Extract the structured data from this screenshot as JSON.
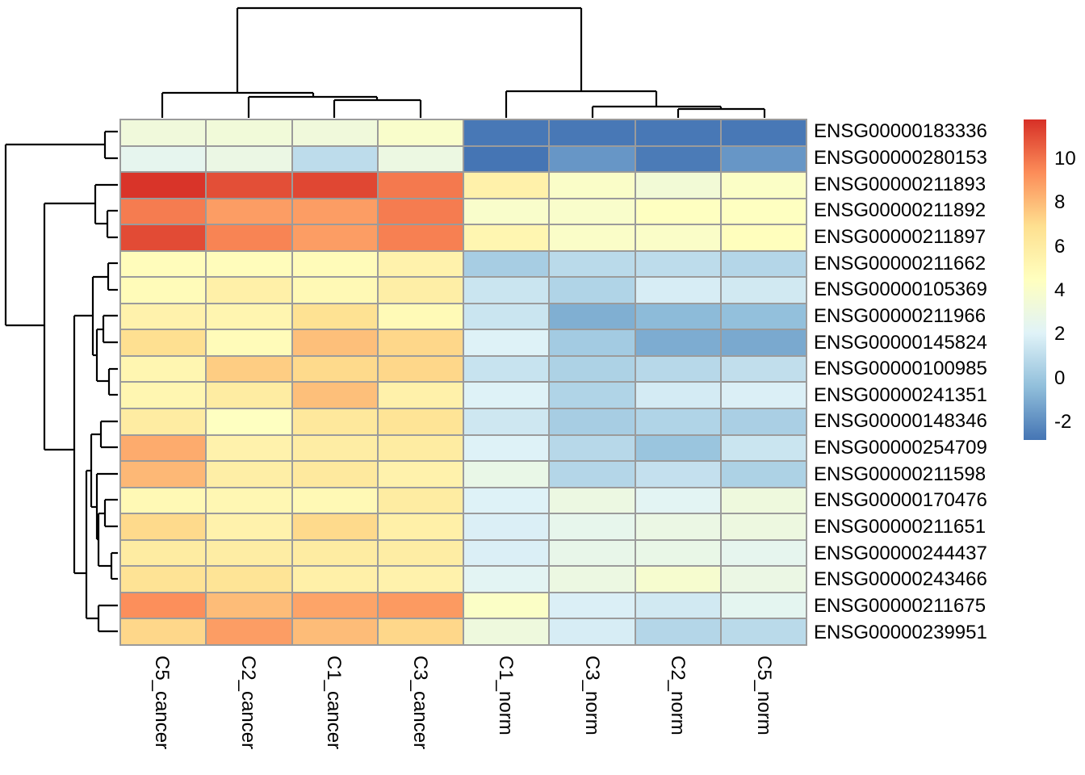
{
  "chart_data": {
    "type": "heatmap",
    "title": "",
    "rows": [
      "ENSG00000183336",
      "ENSG00000280153",
      "ENSG00000211893",
      "ENSG00000211892",
      "ENSG00000211897",
      "ENSG00000211662",
      "ENSG00000105369",
      "ENSG00000211966",
      "ENSG00000145824",
      "ENSG00000100985",
      "ENSG00000241351",
      "ENSG00000148346",
      "ENSG00000254709",
      "ENSG00000211598",
      "ENSG00000170476",
      "ENSG00000211651",
      "ENSG00000244437",
      "ENSG00000243466",
      "ENSG00000211675",
      "ENSG00000239951"
    ],
    "columns": [
      "C5_cancer",
      "C2_cancer",
      "C1_cancer",
      "C3_cancer",
      "C1_norm",
      "C3_norm",
      "C2_norm",
      "C5_norm"
    ],
    "values": [
      [
        3.3,
        3.4,
        3.3,
        4.0,
        -2.7,
        -2.7,
        -2.7,
        -2.7
      ],
      [
        2.5,
        2.9,
        1.0,
        3.0,
        -2.8,
        -1.7,
        -2.6,
        -1.7
      ],
      [
        11.7,
        11.0,
        11.2,
        9.9,
        5.6,
        4.1,
        3.5,
        4.2
      ],
      [
        9.8,
        8.9,
        8.9,
        9.8,
        4.0,
        4.0,
        4.4,
        4.4
      ],
      [
        11.1,
        9.6,
        8.9,
        9.7,
        5.2,
        4.1,
        4.1,
        4.6
      ],
      [
        4.7,
        4.7,
        4.8,
        5.5,
        0.3,
        0.9,
        1.0,
        0.7
      ],
      [
        4.8,
        5.7,
        5.0,
        5.8,
        1.4,
        0.6,
        1.8,
        1.6
      ],
      [
        5.5,
        5.3,
        6.8,
        4.9,
        1.4,
        -0.9,
        -0.5,
        -0.3
      ],
      [
        6.9,
        4.8,
        7.9,
        7.2,
        2.0,
        0.2,
        -1.0,
        -1.1
      ],
      [
        5.2,
        7.5,
        7.1,
        7.2,
        1.3,
        0.5,
        0.8,
        1.1
      ],
      [
        5.2,
        6.0,
        7.9,
        5.6,
        2.0,
        0.6,
        1.7,
        1.9
      ],
      [
        6.0,
        4.4,
        6.3,
        6.6,
        1.5,
        0.3,
        0.6,
        0.4
      ],
      [
        8.5,
        5.5,
        5.9,
        6.0,
        2.0,
        0.8,
        -0.1,
        1.4
      ],
      [
        8.1,
        5.8,
        6.2,
        5.5,
        2.8,
        0.7,
        1.2,
        0.5
      ],
      [
        5.0,
        5.1,
        5.0,
        6.0,
        2.0,
        3.0,
        2.3,
        3.2
      ],
      [
        7.1,
        5.5,
        7.1,
        5.7,
        1.9,
        2.6,
        2.9,
        3.1
      ],
      [
        6.0,
        5.9,
        6.0,
        5.9,
        1.9,
        2.7,
        2.8,
        2.5
      ],
      [
        6.7,
        6.6,
        5.7,
        5.5,
        2.3,
        3.0,
        3.8,
        2.9
      ],
      [
        9.3,
        8.0,
        8.7,
        9.0,
        4.2,
        1.9,
        1.6,
        2.4
      ],
      [
        7.2,
        8.9,
        8.0,
        7.2,
        3.2,
        1.8,
        0.7,
        0.9
      ]
    ],
    "colormap": [
      "#4575b4",
      "#91bfdb",
      "#e0f3f8",
      "#ffffbf",
      "#fee090",
      "#fc8d59",
      "#d73027"
    ],
    "scale": {
      "min": -2.8,
      "max": 11.8
    },
    "legend_ticks": [
      10,
      8,
      6,
      4,
      2,
      0,
      -2
    ],
    "grid_color": "#9b9b9b",
    "line_color": "#000000",
    "col_dendrogram_segments": [
      [
        294,
        10,
        720,
        10
      ],
      [
        294,
        10,
        294,
        115
      ],
      [
        720,
        10,
        720,
        113
      ],
      [
        201,
        115,
        388,
        115
      ],
      [
        201,
        115,
        201,
        146
      ],
      [
        388,
        115,
        388,
        120
      ],
      [
        308,
        120,
        467,
        120
      ],
      [
        308,
        120,
        308,
        146
      ],
      [
        467,
        120,
        467,
        124
      ],
      [
        414,
        124,
        521,
        124
      ],
      [
        414,
        124,
        414,
        146
      ],
      [
        521,
        124,
        521,
        146
      ],
      [
        627,
        113,
        813,
        113
      ],
      [
        627,
        113,
        627,
        146
      ],
      [
        813,
        113,
        813,
        132
      ],
      [
        734,
        132,
        893,
        132
      ],
      [
        734,
        132,
        734,
        146
      ],
      [
        893,
        132,
        893,
        135
      ],
      [
        840,
        135,
        947,
        135
      ],
      [
        840,
        135,
        840,
        146
      ],
      [
        947,
        135,
        947,
        146
      ]
    ],
    "row_dendrogram_segments": [
      [
        7,
        179,
        130,
        179
      ],
      [
        130,
        163,
        130,
        196
      ],
      [
        130,
        163,
        146,
        163
      ],
      [
        130,
        196,
        146,
        196
      ],
      [
        7,
        179,
        7,
        403
      ],
      [
        7,
        403,
        55,
        403
      ],
      [
        55,
        252,
        55,
        557
      ],
      [
        55,
        252,
        118,
        252
      ],
      [
        118,
        229,
        118,
        277
      ],
      [
        118,
        229,
        146,
        229
      ],
      [
        118,
        277,
        133,
        277
      ],
      [
        133,
        261,
        133,
        294
      ],
      [
        133,
        261,
        146,
        261
      ],
      [
        133,
        294,
        146,
        294
      ],
      [
        55,
        557,
        92,
        557
      ],
      [
        92,
        391,
        92,
        710
      ],
      [
        92,
        391,
        115,
        391
      ],
      [
        115,
        343,
        115,
        440
      ],
      [
        115,
        343,
        134,
        343
      ],
      [
        134,
        326,
        134,
        359
      ],
      [
        134,
        326,
        146,
        326
      ],
      [
        134,
        359,
        146,
        359
      ],
      [
        115,
        440,
        120,
        440
      ],
      [
        120,
        408,
        120,
        472
      ],
      [
        120,
        408,
        128,
        408
      ],
      [
        128,
        391,
        128,
        424
      ],
      [
        128,
        391,
        146,
        391
      ],
      [
        128,
        424,
        146,
        424
      ],
      [
        120,
        472,
        135,
        472
      ],
      [
        135,
        457,
        135,
        489
      ],
      [
        135,
        457,
        146,
        457
      ],
      [
        135,
        489,
        146,
        489
      ],
      [
        92,
        710,
        107,
        710
      ],
      [
        107,
        583,
        107,
        766
      ],
      [
        107,
        583,
        113,
        583
      ],
      [
        113,
        538,
        113,
        628
      ],
      [
        113,
        538,
        125,
        538
      ],
      [
        125,
        522,
        125,
        554
      ],
      [
        125,
        522,
        146,
        522
      ],
      [
        125,
        554,
        146,
        554
      ],
      [
        113,
        628,
        120,
        628
      ],
      [
        120,
        587,
        120,
        668
      ],
      [
        120,
        587,
        146,
        587
      ],
      [
        120,
        668,
        122,
        668
      ],
      [
        122,
        636,
        122,
        701
      ],
      [
        122,
        636,
        130,
        636
      ],
      [
        130,
        619,
        130,
        652
      ],
      [
        130,
        619,
        146,
        619
      ],
      [
        130,
        652,
        146,
        652
      ],
      [
        122,
        701,
        138,
        701
      ],
      [
        138,
        685,
        138,
        717
      ],
      [
        138,
        685,
        146,
        685
      ],
      [
        138,
        717,
        146,
        717
      ],
      [
        107,
        766,
        122,
        766
      ],
      [
        122,
        750,
        122,
        782
      ],
      [
        122,
        750,
        146,
        750
      ],
      [
        122,
        782,
        146,
        782
      ]
    ]
  }
}
